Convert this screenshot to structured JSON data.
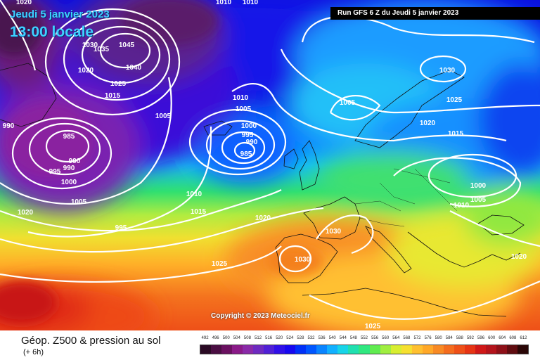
{
  "header": {
    "date": "Jeudi 5 janvier 2023",
    "time": "13:00 locale",
    "run": "Run GFS 6 Z du Jeudi 5 janvier 2023"
  },
  "copyright": "Copyright © 2023 Meteociel.fr",
  "footer": {
    "title": "Géop. Z500 & pression au sol",
    "subtitle": "(+ 6h)"
  },
  "scale": {
    "values": [
      "492",
      "496",
      "500",
      "504",
      "508",
      "512",
      "516",
      "520",
      "524",
      "528",
      "532",
      "536",
      "540",
      "544",
      "548",
      "552",
      "556",
      "560",
      "564",
      "568",
      "572",
      "576",
      "580",
      "584",
      "588",
      "592",
      "596",
      "600",
      "604",
      "608",
      "612"
    ],
    "colors": [
      "#2a0a24",
      "#4a0e42",
      "#6a1060",
      "#8a1a88",
      "#8a2aa8",
      "#6e2ac0",
      "#5020d6",
      "#3010e8",
      "#1608f0",
      "#0030f8",
      "#0056ff",
      "#0a84ff",
      "#12b0ff",
      "#18d4e8",
      "#20e0b0",
      "#30e880",
      "#60ec50",
      "#a0ee40",
      "#d8ee30",
      "#f6e030",
      "#ffc030",
      "#ffa828",
      "#f88a24",
      "#f46c1e",
      "#ee5018",
      "#e63414",
      "#d01818",
      "#b4141c",
      "#8e1018",
      "#600c10",
      "#2a0606"
    ]
  },
  "isobar_labels": [
    "1020",
    "1010",
    "1010",
    "1045",
    "1035",
    "1030",
    "1020",
    "1040",
    "1025",
    "1015",
    "1010",
    "1005",
    "1005",
    "990",
    "985",
    "990",
    "990",
    "995",
    "1000",
    "1000",
    "995",
    "985",
    "990",
    "1005",
    "1010",
    "1015",
    "995",
    "1020",
    "1020",
    "1025",
    "1030",
    "1030",
    "1005",
    "1030",
    "1025",
    "1020",
    "1015",
    "1000",
    "1010",
    "1005",
    "1020",
    "1025"
  ]
}
